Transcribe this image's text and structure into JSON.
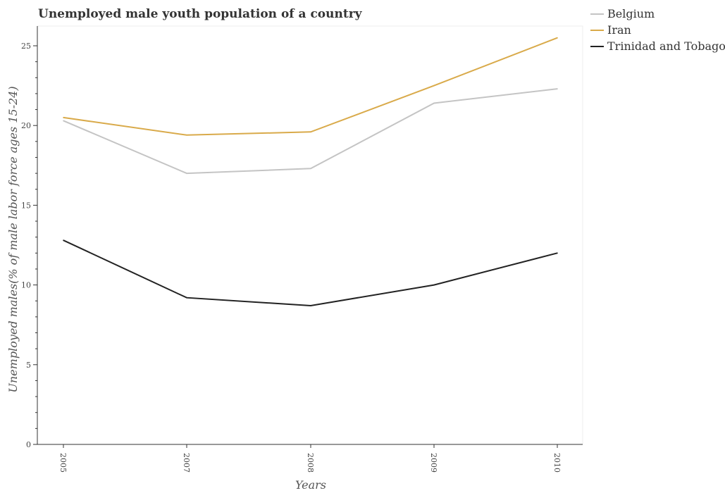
{
  "chart_data": {
    "type": "line",
    "title": "Unemployed male youth population of a country",
    "xlabel": "Years",
    "ylabel": "Unemployed males(% of male labor force ages 15-24)",
    "categories": [
      "2005",
      "2007",
      "2008",
      "2009",
      "2010"
    ],
    "ylim": [
      0,
      25
    ],
    "yticks": [
      "0",
      "5",
      "10",
      "15",
      "20",
      "25"
    ],
    "grid": false,
    "legend_position": "top-right",
    "series": [
      {
        "name": "Belgium",
        "color": "#c4c4c4",
        "values": [
          20.3,
          17.0,
          17.3,
          21.4,
          22.3
        ]
      },
      {
        "name": "Iran",
        "color": "#d9aa4a",
        "values": [
          20.5,
          19.4,
          19.6,
          22.5,
          25.5
        ]
      },
      {
        "name": "Trinidad and Tobago",
        "color": "#222222",
        "values": [
          12.8,
          9.2,
          8.7,
          10.0,
          12.0
        ]
      }
    ]
  }
}
